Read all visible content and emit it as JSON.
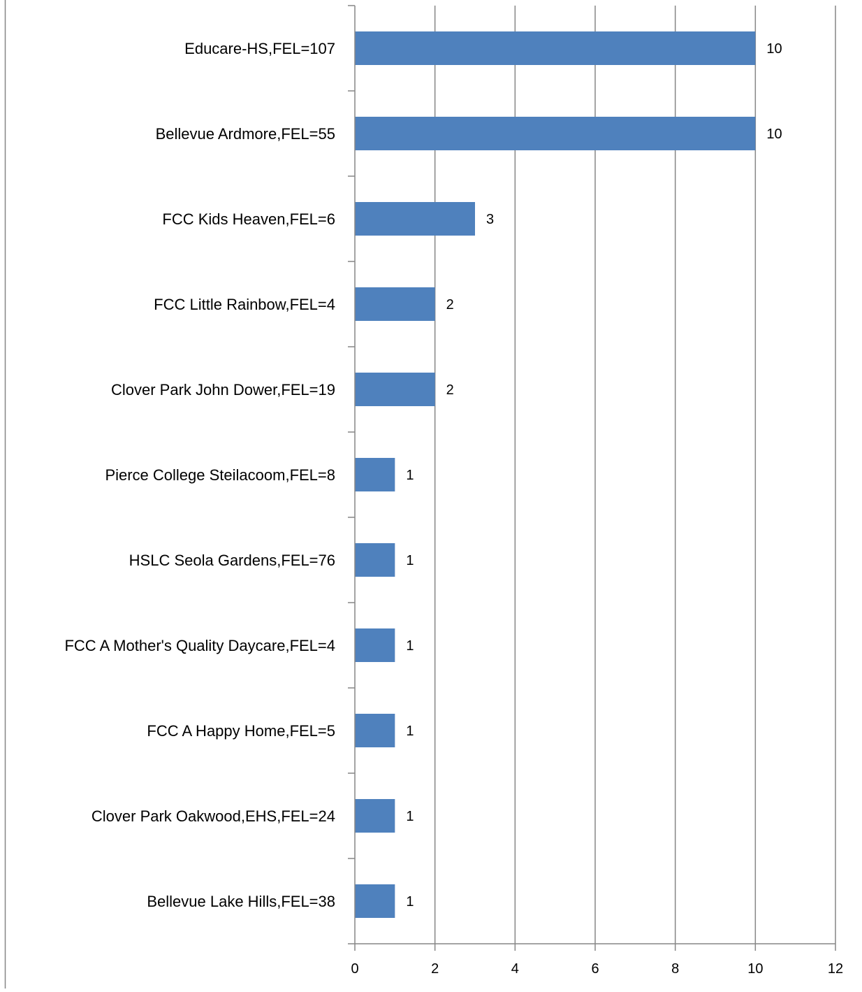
{
  "chart_data": {
    "type": "bar",
    "orientation": "horizontal",
    "title": "",
    "xlabel": "",
    "ylabel": "",
    "categories": [
      "Educare-HS,FEL=107",
      "Bellevue Ardmore,FEL=55",
      "FCC Kids Heaven,FEL=6",
      "FCC Little Rainbow,FEL=4",
      "Clover Park John Dower,FEL=19",
      "Pierce College Steilacoom,FEL=8",
      "HSLC Seola Gardens,FEL=76",
      "FCC A Mother's Quality Daycare,FEL=4",
      "FCC A Happy Home,FEL=5",
      "Clover Park Oakwood,EHS,FEL=24",
      "Bellevue Lake Hills,FEL=38"
    ],
    "values": [
      10,
      10,
      3,
      2,
      2,
      1,
      1,
      1,
      1,
      1,
      1
    ],
    "value_labels": [
      "10",
      "10",
      "3",
      "2",
      "2",
      "1",
      "1",
      "1",
      "1",
      "1",
      "1"
    ],
    "xlim": [
      0,
      12
    ],
    "x_ticks": [
      0,
      2,
      4,
      6,
      8,
      10,
      12
    ],
    "x_tick_labels": [
      "0",
      "2",
      "4",
      "6",
      "8",
      "10",
      "12"
    ],
    "grid": "vertical major gridlines",
    "legend": "none",
    "colors": {
      "bar": "#4F81BD",
      "gridline": "#868686",
      "axis": "#868686",
      "frame": "#868686",
      "text": "#000000"
    }
  }
}
